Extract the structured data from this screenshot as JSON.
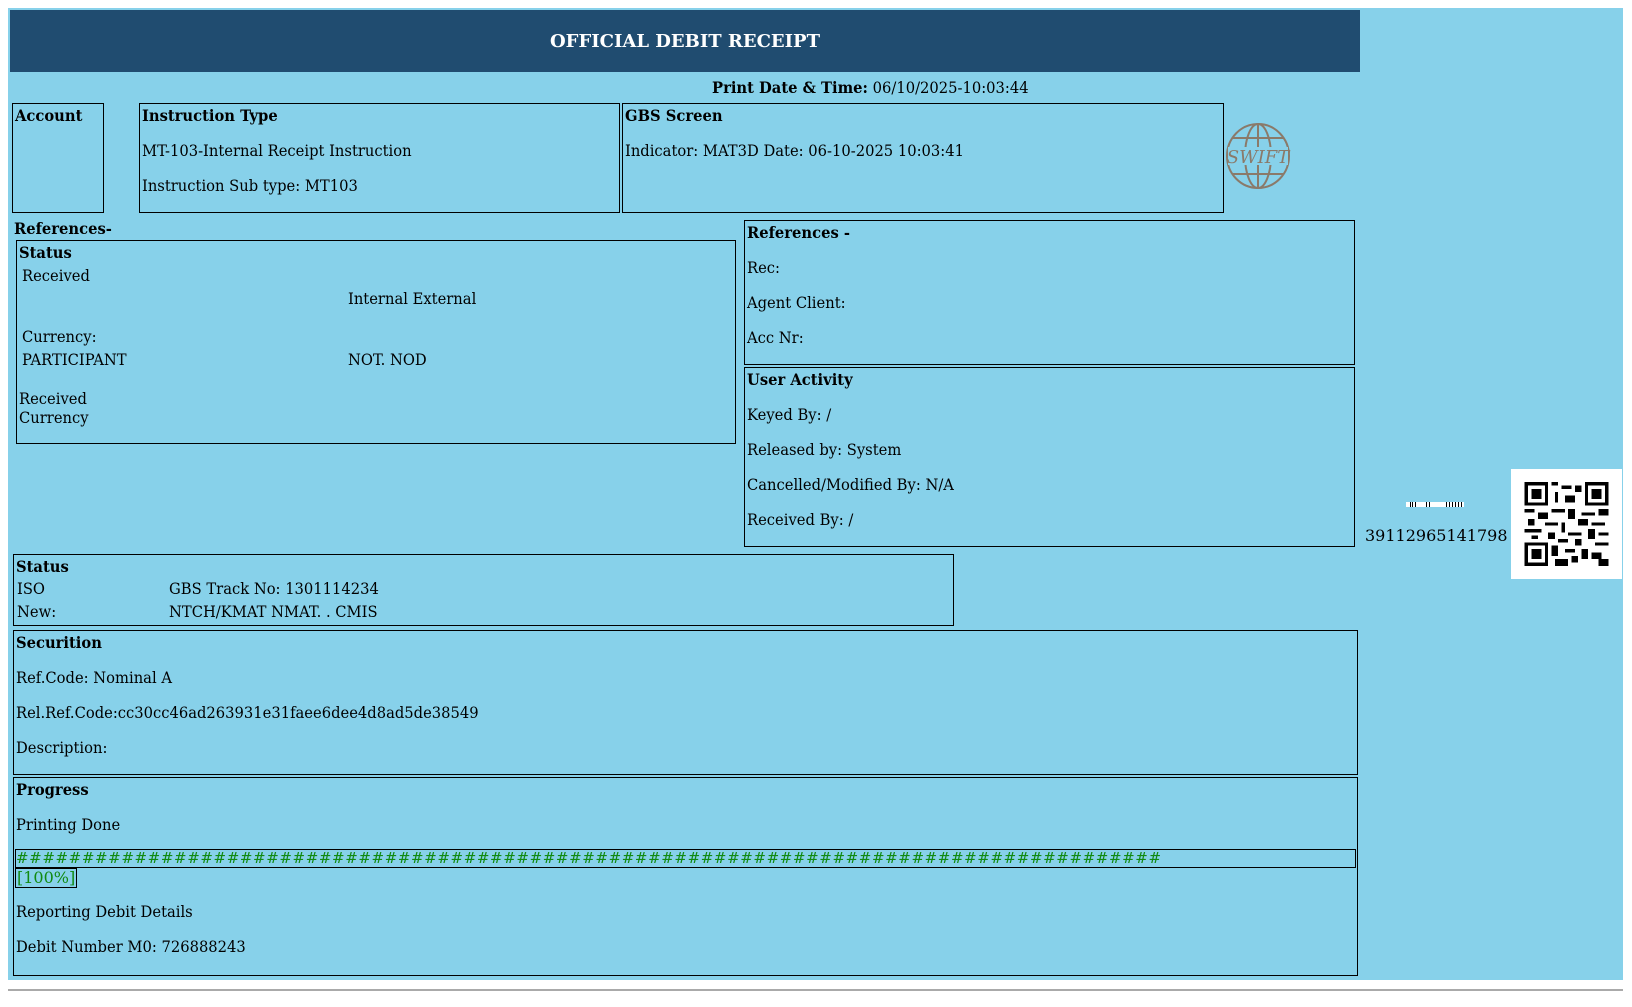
{
  "header": {
    "title": "OFFICIAL DEBIT RECEIPT"
  },
  "print": {
    "label": "Print Date & Time:",
    "value": "06/10/2025-10:03:44"
  },
  "account": {
    "title": "Account"
  },
  "instruction": {
    "title": "Instruction Type",
    "line1": "MT-103-Internal Receipt Instruction",
    "line2": "Instruction Sub type: MT103"
  },
  "gbs": {
    "title": "GBS Screen",
    "line1": "Indicator: MAT3D Date: 06-10-2025 10:03:41"
  },
  "logo": {
    "text": "SWIFT",
    "color": "#8a7a6a"
  },
  "references_left": {
    "label": "References-",
    "status_title": "Status",
    "received": "Received",
    "internal_external": "Internal External",
    "currency": "Currency:",
    "participant": "PARTICIPANT",
    "not_nod": "NOT. NOD",
    "received2": "Received",
    "currency2": "Currency"
  },
  "references_right": {
    "title": "References -",
    "rec": "Rec:",
    "agent": "Agent Client:",
    "acc": "Acc Nr:"
  },
  "user_activity": {
    "title": "User Activity",
    "keyed": "Keyed By: /",
    "released": "Released by: System",
    "cancelled": "Cancelled/Modified By: N/A",
    "received": "Received By: /"
  },
  "barcode": {
    "number": "39112965141798"
  },
  "status": {
    "title": "Status",
    "iso": "ISO",
    "track": "GBS Track No: 1301114234",
    "new_label": "New:",
    "new_value": "NTCH/KMAT NMAT. . CMIS"
  },
  "securition": {
    "title": "Securition",
    "ref": "Ref.Code: Nominal A",
    "relref": "Rel.Ref.Code:cc30cc46ad263931e31faee6dee4d8ad5de38549",
    "desc": "Description:"
  },
  "progress": {
    "title": "Progress",
    "status": "Printing Done",
    "bar": "#######################################################################################",
    "percent": "[100%]",
    "value": 100,
    "reporting": "Reporting Debit Details",
    "debit": "Debit Number M0: 726888243",
    "color": "#118a11"
  },
  "colors": {
    "background": "#87d1ea",
    "header": "#204c70"
  }
}
